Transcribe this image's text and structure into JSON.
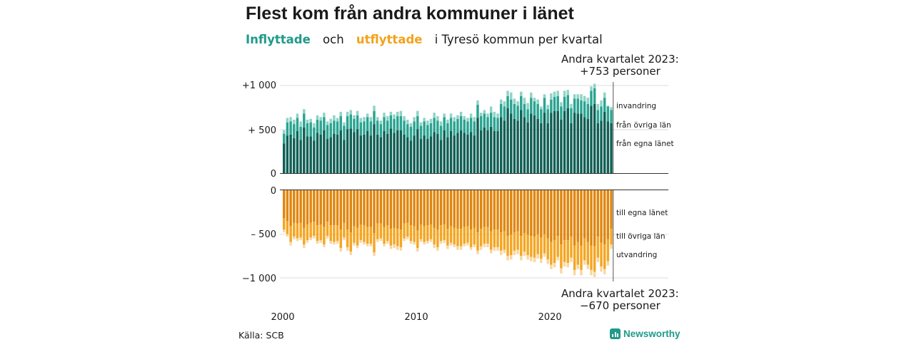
{
  "title": "Flest kom från andra kommuner i länet",
  "subtitle": {
    "inflyttade": "Inflyttade",
    "och": "och",
    "utflyttade": "utflyttade",
    "rest": "i Tyresö kommun per kvartal"
  },
  "note_top": {
    "line1": "Andra kvartalet 2023:",
    "line2": "+753 personer"
  },
  "note_bottom": {
    "line1": "Andra kvartalet 2023:",
    "line2": "−670 personer"
  },
  "source": "Källa: SCB",
  "brand": "Newsworthy",
  "colors": {
    "in_lanet": "#105f55",
    "in_ovriga": "#2aa491",
    "in_invandring": "#8fd3c7",
    "ut_lanet": "#e0860e",
    "ut_ovriga": "#f5a623",
    "ut_utvandring": "#f9d7a2"
  },
  "chart_data": {
    "type": "bar",
    "stacked": true,
    "period": "quarterly 2000 Q1 – 2023 Q2",
    "x_tick_labels": [
      "2000",
      "2010",
      "2020"
    ],
    "top_panel": {
      "y_tick_labels": [
        "+1 000",
        "+ 500",
        "0"
      ],
      "ylim": [
        0,
        1000
      ],
      "series_labels": [
        "invandring",
        "från övriga län",
        "från egna länet"
      ]
    },
    "bottom_panel": {
      "y_tick_labels": [
        "0",
        "– 500",
        "−1 000"
      ],
      "ylim": [
        -1000,
        0
      ],
      "series_labels": [
        "till egna länet",
        "till övriga län",
        "utvandring"
      ]
    },
    "inflyttade": {
      "total": [
        490,
        630,
        640,
        610,
        680,
        590,
        730,
        610,
        620,
        570,
        660,
        640,
        690,
        590,
        620,
        660,
        630,
        700,
        580,
        700,
        720,
        660,
        710,
        630,
        640,
        680,
        640,
        770,
        640,
        600,
        690,
        650,
        700,
        670,
        700,
        710,
        650,
        610,
        570,
        640,
        710,
        580,
        630,
        600,
        620,
        690,
        650,
        590,
        680,
        610,
        680,
        640,
        660,
        700,
        650,
        630,
        680,
        640,
        830,
        690,
        720,
        680,
        760,
        700,
        680,
        840,
        820,
        940,
        920,
        850,
        820,
        930,
        860,
        800,
        920,
        860,
        840,
        760,
        900,
        780,
        910,
        930,
        940,
        810,
        940,
        950,
        790,
        900,
        900,
        900,
        880,
        860,
        990,
        1020,
        790,
        830,
        920,
        770,
        753
      ],
      "fran_ovriga": [
        110,
        150,
        150,
        160,
        150,
        150,
        160,
        150,
        160,
        150,
        150,
        160,
        150,
        160,
        160,
        150,
        150,
        160,
        160,
        150,
        160,
        150,
        160,
        150,
        150,
        160,
        160,
        150,
        160,
        150,
        160,
        150,
        150,
        160,
        160,
        160,
        160,
        150,
        160,
        160,
        150,
        150,
        160,
        160,
        150,
        160,
        150,
        160,
        150,
        160,
        150,
        160,
        160,
        160,
        150,
        150,
        160,
        160,
        150,
        160,
        160,
        150,
        160,
        160,
        150,
        150,
        160,
        140,
        160,
        170,
        170,
        160,
        150,
        150,
        180,
        160,
        170,
        160,
        170,
        160,
        150,
        160,
        170,
        150,
        160,
        150,
        170,
        160,
        170,
        150,
        180,
        170,
        170,
        180,
        150,
        160,
        160,
        170,
        150
      ],
      "fran_egna": [
        340,
        430,
        440,
        400,
        480,
        380,
        520,
        420,
        420,
        370,
        460,
        440,
        490,
        390,
        410,
        450,
        440,
        490,
        380,
        500,
        510,
        470,
        500,
        430,
        440,
        480,
        430,
        560,
        440,
        410,
        480,
        450,
        510,
        460,
        490,
        490,
        440,
        410,
        370,
        430,
        500,
        390,
        430,
        390,
        420,
        470,
        450,
        380,
        490,
        410,
        480,
        430,
        460,
        490,
        460,
        440,
        470,
        430,
        630,
        490,
        520,
        490,
        530,
        480,
        480,
        640,
        600,
        740,
        680,
        620,
        600,
        720,
        640,
        580,
        680,
        660,
        620,
        570,
        690,
        570,
        690,
        710,
        710,
        610,
        710,
        740,
        570,
        690,
        680,
        680,
        640,
        620,
        770,
        790,
        570,
        600,
        700,
        590,
        570
      ]
    },
    "utflyttade": {
      "total": [
        480,
        530,
        630,
        560,
        580,
        570,
        660,
        600,
        570,
        550,
        610,
        600,
        650,
        550,
        610,
        620,
        610,
        700,
        570,
        690,
        740,
        630,
        660,
        600,
        620,
        640,
        640,
        750,
        590,
        580,
        640,
        610,
        670,
        660,
        680,
        690,
        580,
        560,
        610,
        620,
        700,
        590,
        620,
        610,
        590,
        660,
        690,
        610,
        600,
        670,
        630,
        650,
        680,
        680,
        640,
        630,
        680,
        650,
        730,
        680,
        650,
        650,
        720,
        690,
        690,
        740,
        720,
        800,
        790,
        740,
        730,
        800,
        750,
        790,
        810,
        820,
        780,
        830,
        760,
        840,
        900,
        880,
        800,
        950,
        870,
        880,
        820,
        970,
        900,
        970,
        850,
        900,
        970,
        990,
        820,
        930,
        960,
        860,
        670
      ],
      "till_egna": [
        320,
        350,
        410,
        370,
        380,
        370,
        430,
        390,
        370,
        360,
        400,
        390,
        420,
        360,
        400,
        400,
        400,
        450,
        370,
        450,
        480,
        410,
        430,
        390,
        400,
        420,
        420,
        490,
        380,
        380,
        420,
        400,
        440,
        430,
        440,
        450,
        380,
        370,
        400,
        410,
        460,
        390,
        410,
        400,
        390,
        430,
        450,
        400,
        390,
        440,
        410,
        430,
        440,
        440,
        420,
        410,
        450,
        430,
        480,
        440,
        420,
        420,
        470,
        450,
        450,
        480,
        470,
        520,
        510,
        480,
        470,
        520,
        490,
        510,
        520,
        530,
        500,
        540,
        500,
        550,
        590,
        570,
        520,
        620,
        570,
        570,
        530,
        630,
        590,
        630,
        550,
        590,
        630,
        640,
        530,
        600,
        620,
        560,
        440
      ],
      "till_ovriga": [
        130,
        150,
        180,
        160,
        170,
        170,
        190,
        180,
        170,
        160,
        180,
        180,
        200,
        160,
        180,
        190,
        180,
        210,
        170,
        200,
        220,
        190,
        200,
        180,
        190,
        190,
        190,
        220,
        180,
        170,
        190,
        180,
        190,
        190,
        200,
        200,
        170,
        160,
        180,
        180,
        200,
        170,
        180,
        180,
        170,
        190,
        200,
        180,
        180,
        190,
        190,
        190,
        200,
        200,
        190,
        190,
        200,
        190,
        210,
        200,
        190,
        190,
        210,
        200,
        200,
        210,
        210,
        230,
        230,
        210,
        210,
        230,
        210,
        230,
        240,
        240,
        230,
        240,
        220,
        240,
        260,
        260,
        240,
        270,
        250,
        260,
        240,
        280,
        260,
        280,
        250,
        260,
        280,
        290,
        240,
        270,
        280,
        250,
        180
      ]
    }
  }
}
